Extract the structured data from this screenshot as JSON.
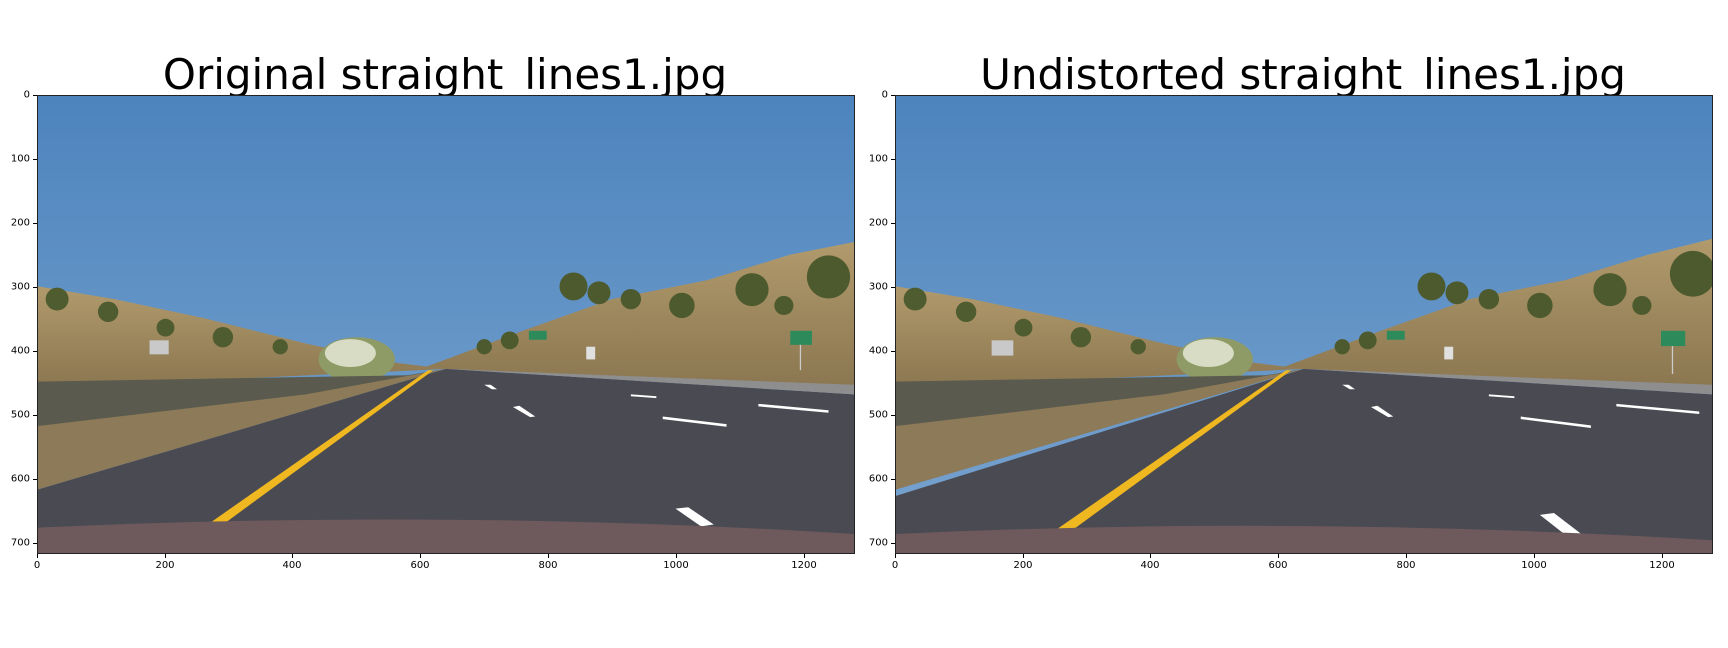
{
  "figure": {
    "panels": [
      {
        "title": "Original straight_lines1.jpg",
        "image_icon": "highway-road-photo",
        "xticks": [
          "0",
          "200",
          "400",
          "600",
          "800",
          "1000",
          "1200"
        ],
        "yticks": [
          "0",
          "100",
          "200",
          "300",
          "400",
          "500",
          "600",
          "700"
        ]
      },
      {
        "title": "Undistorted straight_lines1.jpg",
        "image_icon": "highway-road-photo",
        "xticks": [
          "0",
          "200",
          "400",
          "600",
          "800",
          "1000",
          "1200"
        ],
        "yticks": [
          "0",
          "100",
          "200",
          "300",
          "400",
          "500",
          "600",
          "700"
        ]
      }
    ]
  }
}
